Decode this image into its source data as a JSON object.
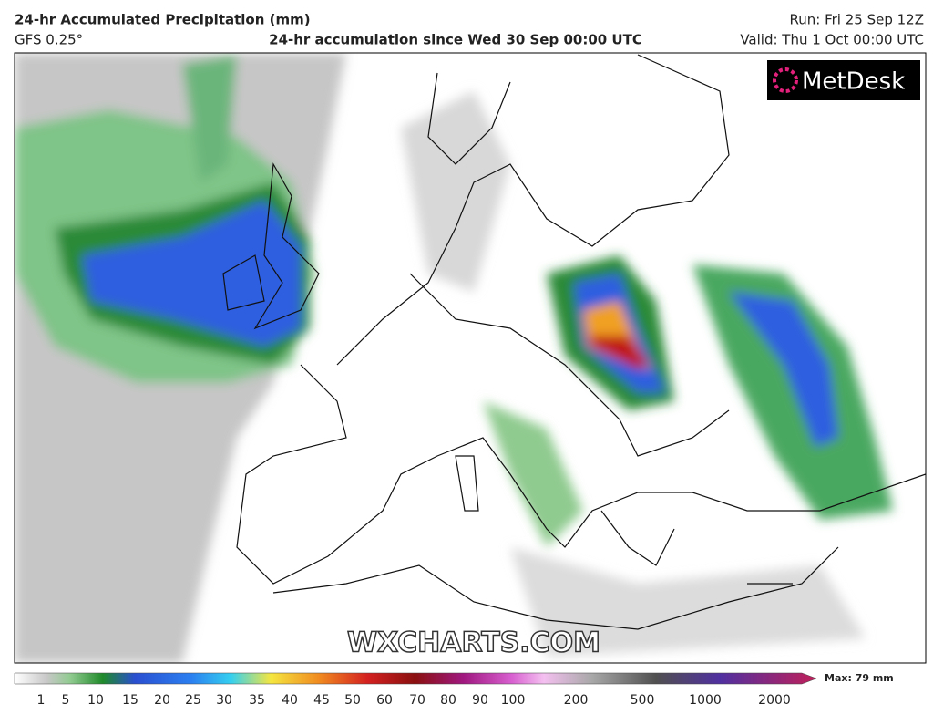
{
  "header": {
    "title": "24-hr Accumulated Precipitation (mm)",
    "model": "GFS 0.25°",
    "subtitle": "24-hr accumulation since Wed 30 Sep 00:00 UTC",
    "run": "Run: Fri 25 Sep 12Z",
    "valid": "Valid: Thu 1 Oct 00:00 UTC"
  },
  "map": {
    "logo": "MetDesk",
    "watermark": "WXCHARTS.COM"
  },
  "legend": {
    "ticks": [
      1,
      5,
      10,
      15,
      20,
      25,
      30,
      35,
      40,
      45,
      50,
      60,
      70,
      80,
      90,
      100,
      200,
      500,
      1000,
      2000
    ],
    "max": "Max: 79 mm"
  }
}
